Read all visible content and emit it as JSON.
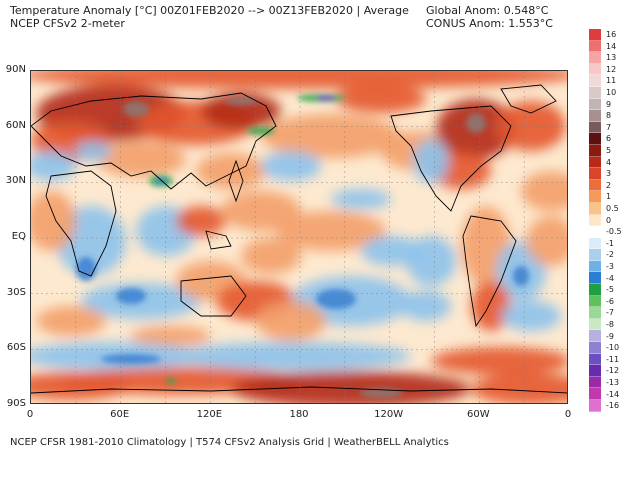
{
  "header": {
    "title_line1": "Temperature Anomaly [°C] 00Z01FEB2020 --> 00Z13FEB2020 | Average",
    "title_line2": "NCEP CFSv2 2-meter",
    "global_anom": "Global Anom: 0.548°C",
    "conus_anom": "CONUS Anom: 1.553°C"
  },
  "map": {
    "y_labels": [
      "90N",
      "60N",
      "30N",
      "EQ",
      "30S",
      "60S",
      "90S"
    ],
    "x_labels": [
      "0",
      "60E",
      "120E",
      "180",
      "120W",
      "60W",
      "0"
    ],
    "colors": {
      "warm_strong": "#b22a17",
      "warm": "#e4562e",
      "warm_light": "#f3a06a",
      "neutral": "#fde9cf",
      "cool": "#8cc2ec",
      "cool_strong": "#3b7fd0",
      "green": "#2ea84d",
      "purple": "#7a4fc9",
      "land_gray": "#8b7a77",
      "border": "#000000"
    }
  },
  "legend": {
    "labels": [
      "16",
      "14",
      "13",
      "12",
      "11",
      "10",
      "9",
      "8",
      "7",
      "6",
      "5",
      "4",
      "3",
      "2",
      "1",
      "0.5",
      "0",
      "-0.5",
      "-1",
      "-2",
      "-3",
      "-4",
      "-5",
      "-6",
      "-7",
      "-8",
      "-9",
      "-10",
      "-11",
      "-12",
      "-13",
      "-14",
      "-16"
    ],
    "colors": [
      "#e03c3c",
      "#ec7070",
      "#f5a5a5",
      "#f8c8c8",
      "#f0d9d9",
      "#d9c9c9",
      "#c3b4b4",
      "#a89090",
      "#7a5a5a",
      "#5c1010",
      "#8b1a10",
      "#b82a18",
      "#d8452a",
      "#ec6e3a",
      "#f59b5a",
      "#f8c48a",
      "#fde7c6",
      "#ffffff",
      "#dcecf8",
      "#a9d0ef",
      "#6fb0e6",
      "#2a7ed3",
      "#1fa045",
      "#5dc15e",
      "#9ad89a",
      "#c8e9c4",
      "#b8b0e0",
      "#9080d0",
      "#6a50c0",
      "#6a2ab0",
      "#9a2aa8",
      "#c03aae",
      "#e070d0"
    ]
  },
  "footer": {
    "text": "NCEP CFSR 1981-2010 Climatology | T574 CFSv2 Analysis Grid | WeatherBELL Analytics"
  }
}
